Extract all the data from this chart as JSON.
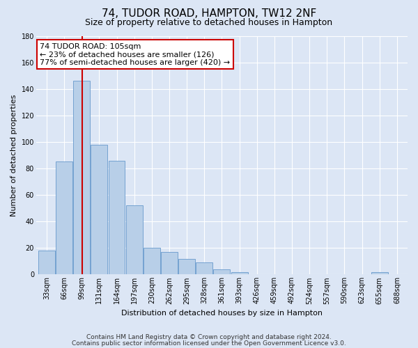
{
  "title": "74, TUDOR ROAD, HAMPTON, TW12 2NF",
  "subtitle": "Size of property relative to detached houses in Hampton",
  "xlabel": "Distribution of detached houses by size in Hampton",
  "ylabel": "Number of detached properties",
  "bar_values": [
    18,
    85,
    146,
    98,
    86,
    52,
    20,
    17,
    12,
    9,
    4,
    2,
    0,
    0,
    0,
    0,
    0,
    0,
    0,
    2,
    0
  ],
  "bin_labels": [
    "33sqm",
    "66sqm",
    "99sqm",
    "131sqm",
    "164sqm",
    "197sqm",
    "230sqm",
    "262sqm",
    "295sqm",
    "328sqm",
    "361sqm",
    "393sqm",
    "426sqm",
    "459sqm",
    "492sqm",
    "524sqm",
    "557sqm",
    "590sqm",
    "623sqm",
    "655sqm",
    "688sqm"
  ],
  "bar_color": "#b8cfe8",
  "bar_edge_color": "#6699cc",
  "vline_color": "#cc0000",
  "vline_x": 2.05,
  "ylim": [
    0,
    180
  ],
  "yticks": [
    0,
    20,
    40,
    60,
    80,
    100,
    120,
    140,
    160,
    180
  ],
  "annotation_line1": "74 TUDOR ROAD: 105sqm",
  "annotation_line2": "← 23% of detached houses are smaller (126)",
  "annotation_line3": "77% of semi-detached houses are larger (420) →",
  "annotation_box_color": "#ffffff",
  "annotation_box_edge": "#cc0000",
  "footer_line1": "Contains HM Land Registry data © Crown copyright and database right 2024.",
  "footer_line2": "Contains public sector information licensed under the Open Government Licence v3.0.",
  "bg_color": "#dce6f5",
  "plot_bg_color": "#dce6f5",
  "grid_color": "#ffffff",
  "title_fontsize": 11,
  "subtitle_fontsize": 9,
  "axis_label_fontsize": 8,
  "tick_fontsize": 7,
  "annotation_fontsize": 8,
  "footer_fontsize": 6.5
}
